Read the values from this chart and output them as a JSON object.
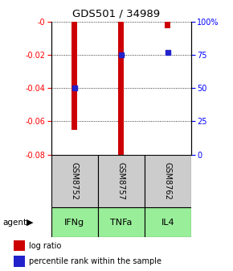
{
  "title": "GDS501 / 34989",
  "samples": [
    "GSM8752",
    "GSM8757",
    "GSM8762"
  ],
  "agents": [
    "IFNg",
    "TNFa",
    "IL4"
  ],
  "log_ratios": [
    -0.065,
    -0.08,
    -0.004
  ],
  "percentile_ranks": [
    0.5,
    0.75,
    0.77
  ],
  "bar_color": "#cc0000",
  "dot_color": "#2222cc",
  "ylim": [
    -0.08,
    0.0
  ],
  "yticks_left": [
    0.0,
    -0.02,
    -0.04,
    -0.06,
    -0.08
  ],
  "ytick_labels_left": [
    "-0",
    "-0.02",
    "-0.04",
    "-0.06",
    "-0.08"
  ],
  "right_pcts": [
    100,
    75,
    50,
    25,
    0
  ],
  "right_pct_labels": [
    "100%",
    "75",
    "50",
    "25",
    "0"
  ],
  "gsm_bg_color": "#cccccc",
  "agent_bg_color": "#99ee99",
  "bar_width": 0.12,
  "background_color": "#ffffff"
}
